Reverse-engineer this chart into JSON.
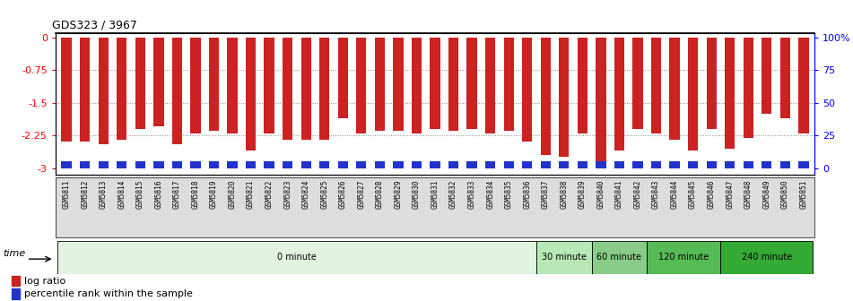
{
  "title": "GDS323 / 3967",
  "samples": [
    "GSM5811",
    "GSM5812",
    "GSM5813",
    "GSM5814",
    "GSM5815",
    "GSM5816",
    "GSM5817",
    "GSM5818",
    "GSM5819",
    "GSM5820",
    "GSM5821",
    "GSM5822",
    "GSM5823",
    "GSM5824",
    "GSM5825",
    "GSM5826",
    "GSM5827",
    "GSM5828",
    "GSM5829",
    "GSM5830",
    "GSM5831",
    "GSM5832",
    "GSM5833",
    "GSM5834",
    "GSM5835",
    "GSM5836",
    "GSM5837",
    "GSM5838",
    "GSM5839",
    "GSM5840",
    "GSM5841",
    "GSM5842",
    "GSM5843",
    "GSM5844",
    "GSM5845",
    "GSM5846",
    "GSM5847",
    "GSM5848",
    "GSM5849",
    "GSM5850",
    "GSM5851"
  ],
  "log_ratio": [
    -2.4,
    -2.4,
    -2.45,
    -2.35,
    -2.1,
    -2.05,
    -2.45,
    -2.2,
    -2.15,
    -2.2,
    -2.6,
    -2.2,
    -2.35,
    -2.35,
    -2.35,
    -1.85,
    -2.2,
    -2.15,
    -2.15,
    -2.2,
    -2.1,
    -2.15,
    -2.1,
    -2.2,
    -2.15,
    -2.4,
    -2.7,
    -2.75,
    -2.2,
    -2.9,
    -2.6,
    -2.1,
    -2.2,
    -2.35,
    -2.6,
    -2.1,
    -2.55,
    -2.3,
    -1.75,
    -1.85,
    -2.2
  ],
  "percentile_rank_pct": [
    5,
    5,
    5,
    5,
    5,
    5,
    5,
    5,
    5,
    5,
    5,
    5,
    5,
    5,
    5,
    5,
    5,
    5,
    5,
    5,
    5,
    5,
    5,
    5,
    5,
    5,
    5,
    5,
    5,
    5,
    5,
    5,
    5,
    5,
    5,
    5,
    5,
    5,
    5,
    5,
    5
  ],
  "time_groups": [
    {
      "label": "0 minute",
      "start": 0,
      "end": 26,
      "color": "#e0f4e0"
    },
    {
      "label": "30 minute",
      "start": 26,
      "end": 29,
      "color": "#b8e8b8"
    },
    {
      "label": "60 minute",
      "start": 29,
      "end": 32,
      "color": "#88cc88"
    },
    {
      "label": "120 minute",
      "start": 32,
      "end": 36,
      "color": "#55bb55"
    },
    {
      "label": "240 minute",
      "start": 36,
      "end": 41,
      "color": "#33aa33"
    }
  ],
  "ylim_left": [
    -3.15,
    0.1
  ],
  "ylim_right": [
    -3.15,
    0.1
  ],
  "yticks_left": [
    0,
    -0.75,
    -1.5,
    -2.25,
    -3
  ],
  "yticks_right_vals": [
    0,
    -0.75,
    -1.5,
    -2.25,
    -3
  ],
  "ytick_labels_right": [
    "100%",
    "75",
    "50",
    "25",
    "0"
  ],
  "bar_color_red": "#cc2222",
  "bar_color_blue": "#2233cc",
  "dotted_line_color": "#888888",
  "background_color": "#ffffff",
  "bar_area_bg": "#ffffff",
  "sample_label_bg": "#dddddd",
  "legend_log_ratio": "log ratio",
  "legend_percentile": "percentile rank within the sample",
  "time_label": "time"
}
